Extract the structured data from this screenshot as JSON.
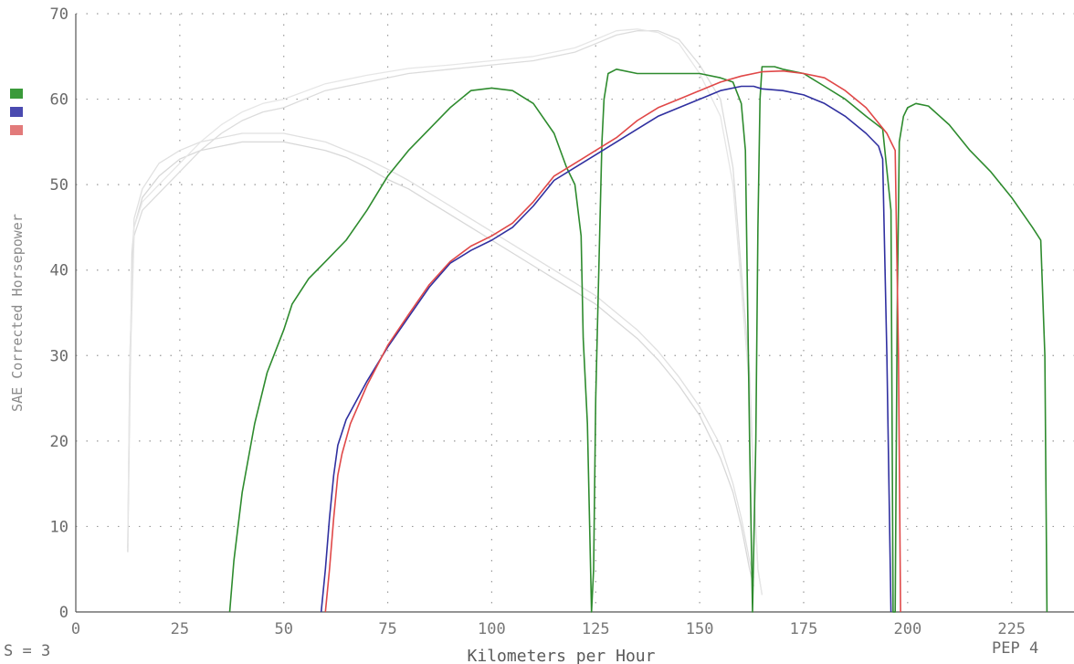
{
  "footer": {
    "smoothing": "S = 3",
    "right_label": "PEP 4"
  },
  "chart_data": {
    "type": "line",
    "xlabel": "Kilometers per Hour",
    "ylabel": "SAE Corrected Horsepower",
    "xlim": [
      0,
      240
    ],
    "ylim": [
      0,
      70
    ],
    "x_ticks": [
      0,
      25,
      50,
      75,
      100,
      125,
      150,
      175,
      200,
      225
    ],
    "y_ticks": [
      0,
      10,
      20,
      30,
      40,
      50,
      60,
      70
    ],
    "grid": true,
    "legend_position": "left",
    "legend_colors": [
      "#3a9a3a",
      "#4a4ab0",
      "#e27a7a"
    ],
    "series": [
      {
        "color": "#2e8b2e",
        "points": [
          [
            37,
            0
          ],
          [
            38,
            6
          ],
          [
            40,
            14
          ],
          [
            43,
            22
          ],
          [
            46,
            28
          ],
          [
            50,
            33
          ],
          [
            52,
            36
          ],
          [
            56,
            39
          ],
          [
            60,
            41
          ],
          [
            65,
            43.5
          ],
          [
            70,
            47
          ],
          [
            75,
            51
          ],
          [
            80,
            54
          ],
          [
            85,
            56.5
          ],
          [
            90,
            59
          ],
          [
            95,
            61
          ],
          [
            100,
            61.3
          ],
          [
            105,
            61
          ],
          [
            110,
            59.5
          ],
          [
            115,
            56
          ],
          [
            118,
            52
          ],
          [
            120,
            50
          ],
          [
            121.5,
            44
          ],
          [
            122,
            32
          ],
          [
            123,
            22
          ],
          [
            124,
            0
          ],
          [
            124.5,
            5
          ],
          [
            125,
            25
          ],
          [
            126,
            45
          ],
          [
            126.5,
            55
          ],
          [
            127,
            60
          ],
          [
            128,
            63
          ],
          [
            130,
            63.5
          ],
          [
            135,
            63
          ],
          [
            140,
            63
          ],
          [
            145,
            63
          ],
          [
            150,
            63
          ],
          [
            155,
            62.5
          ],
          [
            158,
            62
          ],
          [
            160,
            59.5
          ],
          [
            161,
            54
          ],
          [
            162,
            20
          ],
          [
            162.7,
            0
          ],
          [
            163.5,
            20
          ],
          [
            164,
            45
          ],
          [
            164.5,
            60
          ],
          [
            165,
            63.8
          ],
          [
            168,
            63.8
          ],
          [
            170,
            63.5
          ],
          [
            175,
            63
          ],
          [
            180,
            61.5
          ],
          [
            185,
            60
          ],
          [
            190,
            58
          ],
          [
            194,
            56.5
          ],
          [
            196,
            47
          ],
          [
            196.5,
            0
          ],
          [
            197,
            0
          ],
          [
            197.5,
            35
          ],
          [
            198,
            55
          ],
          [
            199,
            58
          ],
          [
            200,
            59
          ],
          [
            202,
            59.5
          ],
          [
            205,
            59.2
          ],
          [
            210,
            57
          ],
          [
            215,
            54
          ],
          [
            220,
            51.5
          ],
          [
            225,
            48.5
          ],
          [
            230,
            45
          ],
          [
            232,
            43.5
          ],
          [
            233,
            30
          ],
          [
            233.5,
            0
          ]
        ]
      },
      {
        "color": "#3030a0",
        "points": [
          [
            59,
            0
          ],
          [
            60,
            5
          ],
          [
            61,
            11
          ],
          [
            62,
            16
          ],
          [
            63,
            19.5
          ],
          [
            65,
            22.5
          ],
          [
            70,
            27
          ],
          [
            75,
            31
          ],
          [
            80,
            34.5
          ],
          [
            85,
            38
          ],
          [
            90,
            40.8
          ],
          [
            95,
            42.3
          ],
          [
            100,
            43.5
          ],
          [
            105,
            45
          ],
          [
            110,
            47.5
          ],
          [
            115,
            50.5
          ],
          [
            120,
            52
          ],
          [
            125,
            53.5
          ],
          [
            130,
            55
          ],
          [
            135,
            56.5
          ],
          [
            140,
            58
          ],
          [
            145,
            59
          ],
          [
            150,
            60
          ],
          [
            155,
            61
          ],
          [
            160,
            61.5
          ],
          [
            163,
            61.5
          ],
          [
            165,
            61.2
          ],
          [
            170,
            61
          ],
          [
            175,
            60.5
          ],
          [
            180,
            59.5
          ],
          [
            185,
            58
          ],
          [
            190,
            56
          ],
          [
            193,
            54.5
          ],
          [
            194,
            53
          ],
          [
            195,
            30
          ],
          [
            196,
            0
          ]
        ]
      },
      {
        "color": "#e04848",
        "points": [
          [
            60,
            0
          ],
          [
            61,
            5
          ],
          [
            62,
            11
          ],
          [
            63,
            16
          ],
          [
            64,
            18.5
          ],
          [
            66,
            22
          ],
          [
            70,
            26.5
          ],
          [
            75,
            31.2
          ],
          [
            80,
            34.8
          ],
          [
            85,
            38.3
          ],
          [
            90,
            41
          ],
          [
            95,
            42.8
          ],
          [
            100,
            44
          ],
          [
            105,
            45.5
          ],
          [
            110,
            48
          ],
          [
            115,
            51
          ],
          [
            120,
            52.5
          ],
          [
            125,
            54
          ],
          [
            130,
            55.5
          ],
          [
            135,
            57.5
          ],
          [
            140,
            59
          ],
          [
            145,
            60
          ],
          [
            150,
            61
          ],
          [
            155,
            62
          ],
          [
            160,
            62.7
          ],
          [
            165,
            63.2
          ],
          [
            170,
            63.3
          ],
          [
            175,
            63
          ],
          [
            180,
            62.5
          ],
          [
            185,
            61
          ],
          [
            190,
            59
          ],
          [
            195,
            56
          ],
          [
            196,
            55
          ],
          [
            197,
            54
          ],
          [
            197.8,
            30
          ],
          [
            198.3,
            0
          ]
        ]
      },
      {
        "color": "#d8d8d8",
        "points": [
          [
            12.5,
            7
          ],
          [
            13,
            25
          ],
          [
            13.5,
            42
          ],
          [
            14,
            45
          ],
          [
            16,
            48.5
          ],
          [
            20,
            51
          ],
          [
            25,
            53
          ],
          [
            30,
            54
          ],
          [
            35,
            54.5
          ],
          [
            40,
            55
          ],
          [
            45,
            55
          ],
          [
            50,
            55
          ],
          [
            55,
            54.5
          ],
          [
            60,
            54
          ],
          [
            65,
            53.2
          ],
          [
            70,
            52
          ],
          [
            75,
            50.6
          ],
          [
            80,
            49.5
          ],
          [
            85,
            48
          ],
          [
            90,
            46.5
          ],
          [
            95,
            45
          ],
          [
            100,
            43.5
          ],
          [
            105,
            42
          ],
          [
            110,
            40.5
          ],
          [
            115,
            39
          ],
          [
            120,
            37.5
          ],
          [
            125,
            36
          ],
          [
            130,
            34
          ],
          [
            135,
            32
          ],
          [
            140,
            29.5
          ],
          [
            145,
            26.5
          ],
          [
            150,
            23
          ],
          [
            155,
            18
          ],
          [
            158,
            14
          ],
          [
            160,
            10
          ],
          [
            162,
            5
          ],
          [
            163,
            3
          ]
        ]
      },
      {
        "color": "#e0e0e0",
        "points": [
          [
            12.5,
            8
          ],
          [
            13,
            30
          ],
          [
            14,
            46
          ],
          [
            16,
            49.5
          ],
          [
            20,
            52.5
          ],
          [
            25,
            54
          ],
          [
            30,
            55
          ],
          [
            35,
            55.5
          ],
          [
            40,
            56
          ],
          [
            45,
            56
          ],
          [
            50,
            56
          ],
          [
            55,
            55.5
          ],
          [
            60,
            55
          ],
          [
            65,
            54
          ],
          [
            70,
            53
          ],
          [
            75,
            51.8
          ],
          [
            80,
            50.5
          ],
          [
            85,
            49
          ],
          [
            90,
            47.5
          ],
          [
            95,
            46
          ],
          [
            100,
            44.5
          ],
          [
            105,
            43
          ],
          [
            110,
            41.5
          ],
          [
            115,
            40
          ],
          [
            120,
            38.5
          ],
          [
            125,
            37
          ],
          [
            130,
            35
          ],
          [
            135,
            33
          ],
          [
            140,
            30.5
          ],
          [
            145,
            27.5
          ],
          [
            150,
            24
          ],
          [
            155,
            19.5
          ],
          [
            158,
            15
          ],
          [
            160,
            11
          ],
          [
            162,
            6
          ],
          [
            163,
            4
          ]
        ]
      },
      {
        "color": "#dcdcdc",
        "points": [
          [
            12.5,
            7.5
          ],
          [
            13,
            28
          ],
          [
            14,
            44
          ],
          [
            16,
            47
          ],
          [
            20,
            49
          ],
          [
            25,
            51.5
          ],
          [
            30,
            54
          ],
          [
            35,
            56
          ],
          [
            40,
            57.5
          ],
          [
            45,
            58.5
          ],
          [
            50,
            59
          ],
          [
            60,
            61
          ],
          [
            70,
            62
          ],
          [
            80,
            63
          ],
          [
            90,
            63.5
          ],
          [
            100,
            64
          ],
          [
            110,
            64.5
          ],
          [
            120,
            65.5
          ],
          [
            125,
            66.5
          ],
          [
            130,
            67.5
          ],
          [
            135,
            68
          ],
          [
            140,
            68
          ],
          [
            145,
            67
          ],
          [
            150,
            64
          ],
          [
            155,
            60
          ],
          [
            158,
            52
          ],
          [
            160,
            40
          ],
          [
            162,
            28
          ],
          [
            163,
            15
          ],
          [
            164,
            5
          ],
          [
            165,
            2
          ]
        ]
      },
      {
        "color": "#e6e6e6",
        "points": [
          [
            12.5,
            8
          ],
          [
            13,
            30
          ],
          [
            14,
            45
          ],
          [
            16,
            48
          ],
          [
            20,
            50
          ],
          [
            25,
            52.5
          ],
          [
            30,
            55
          ],
          [
            35,
            57
          ],
          [
            40,
            58.5
          ],
          [
            45,
            59.5
          ],
          [
            50,
            60
          ],
          [
            60,
            61.8
          ],
          [
            70,
            62.8
          ],
          [
            80,
            63.6
          ],
          [
            90,
            64
          ],
          [
            100,
            64.5
          ],
          [
            110,
            65
          ],
          [
            120,
            66
          ],
          [
            125,
            67
          ],
          [
            130,
            68
          ],
          [
            135,
            68.2
          ],
          [
            140,
            67.8
          ],
          [
            145,
            66.5
          ],
          [
            150,
            63
          ],
          [
            155,
            58
          ],
          [
            158,
            50
          ],
          [
            160,
            38
          ],
          [
            162,
            26
          ],
          [
            163,
            14
          ],
          [
            164,
            5
          ],
          [
            165,
            2
          ]
        ]
      }
    ]
  }
}
